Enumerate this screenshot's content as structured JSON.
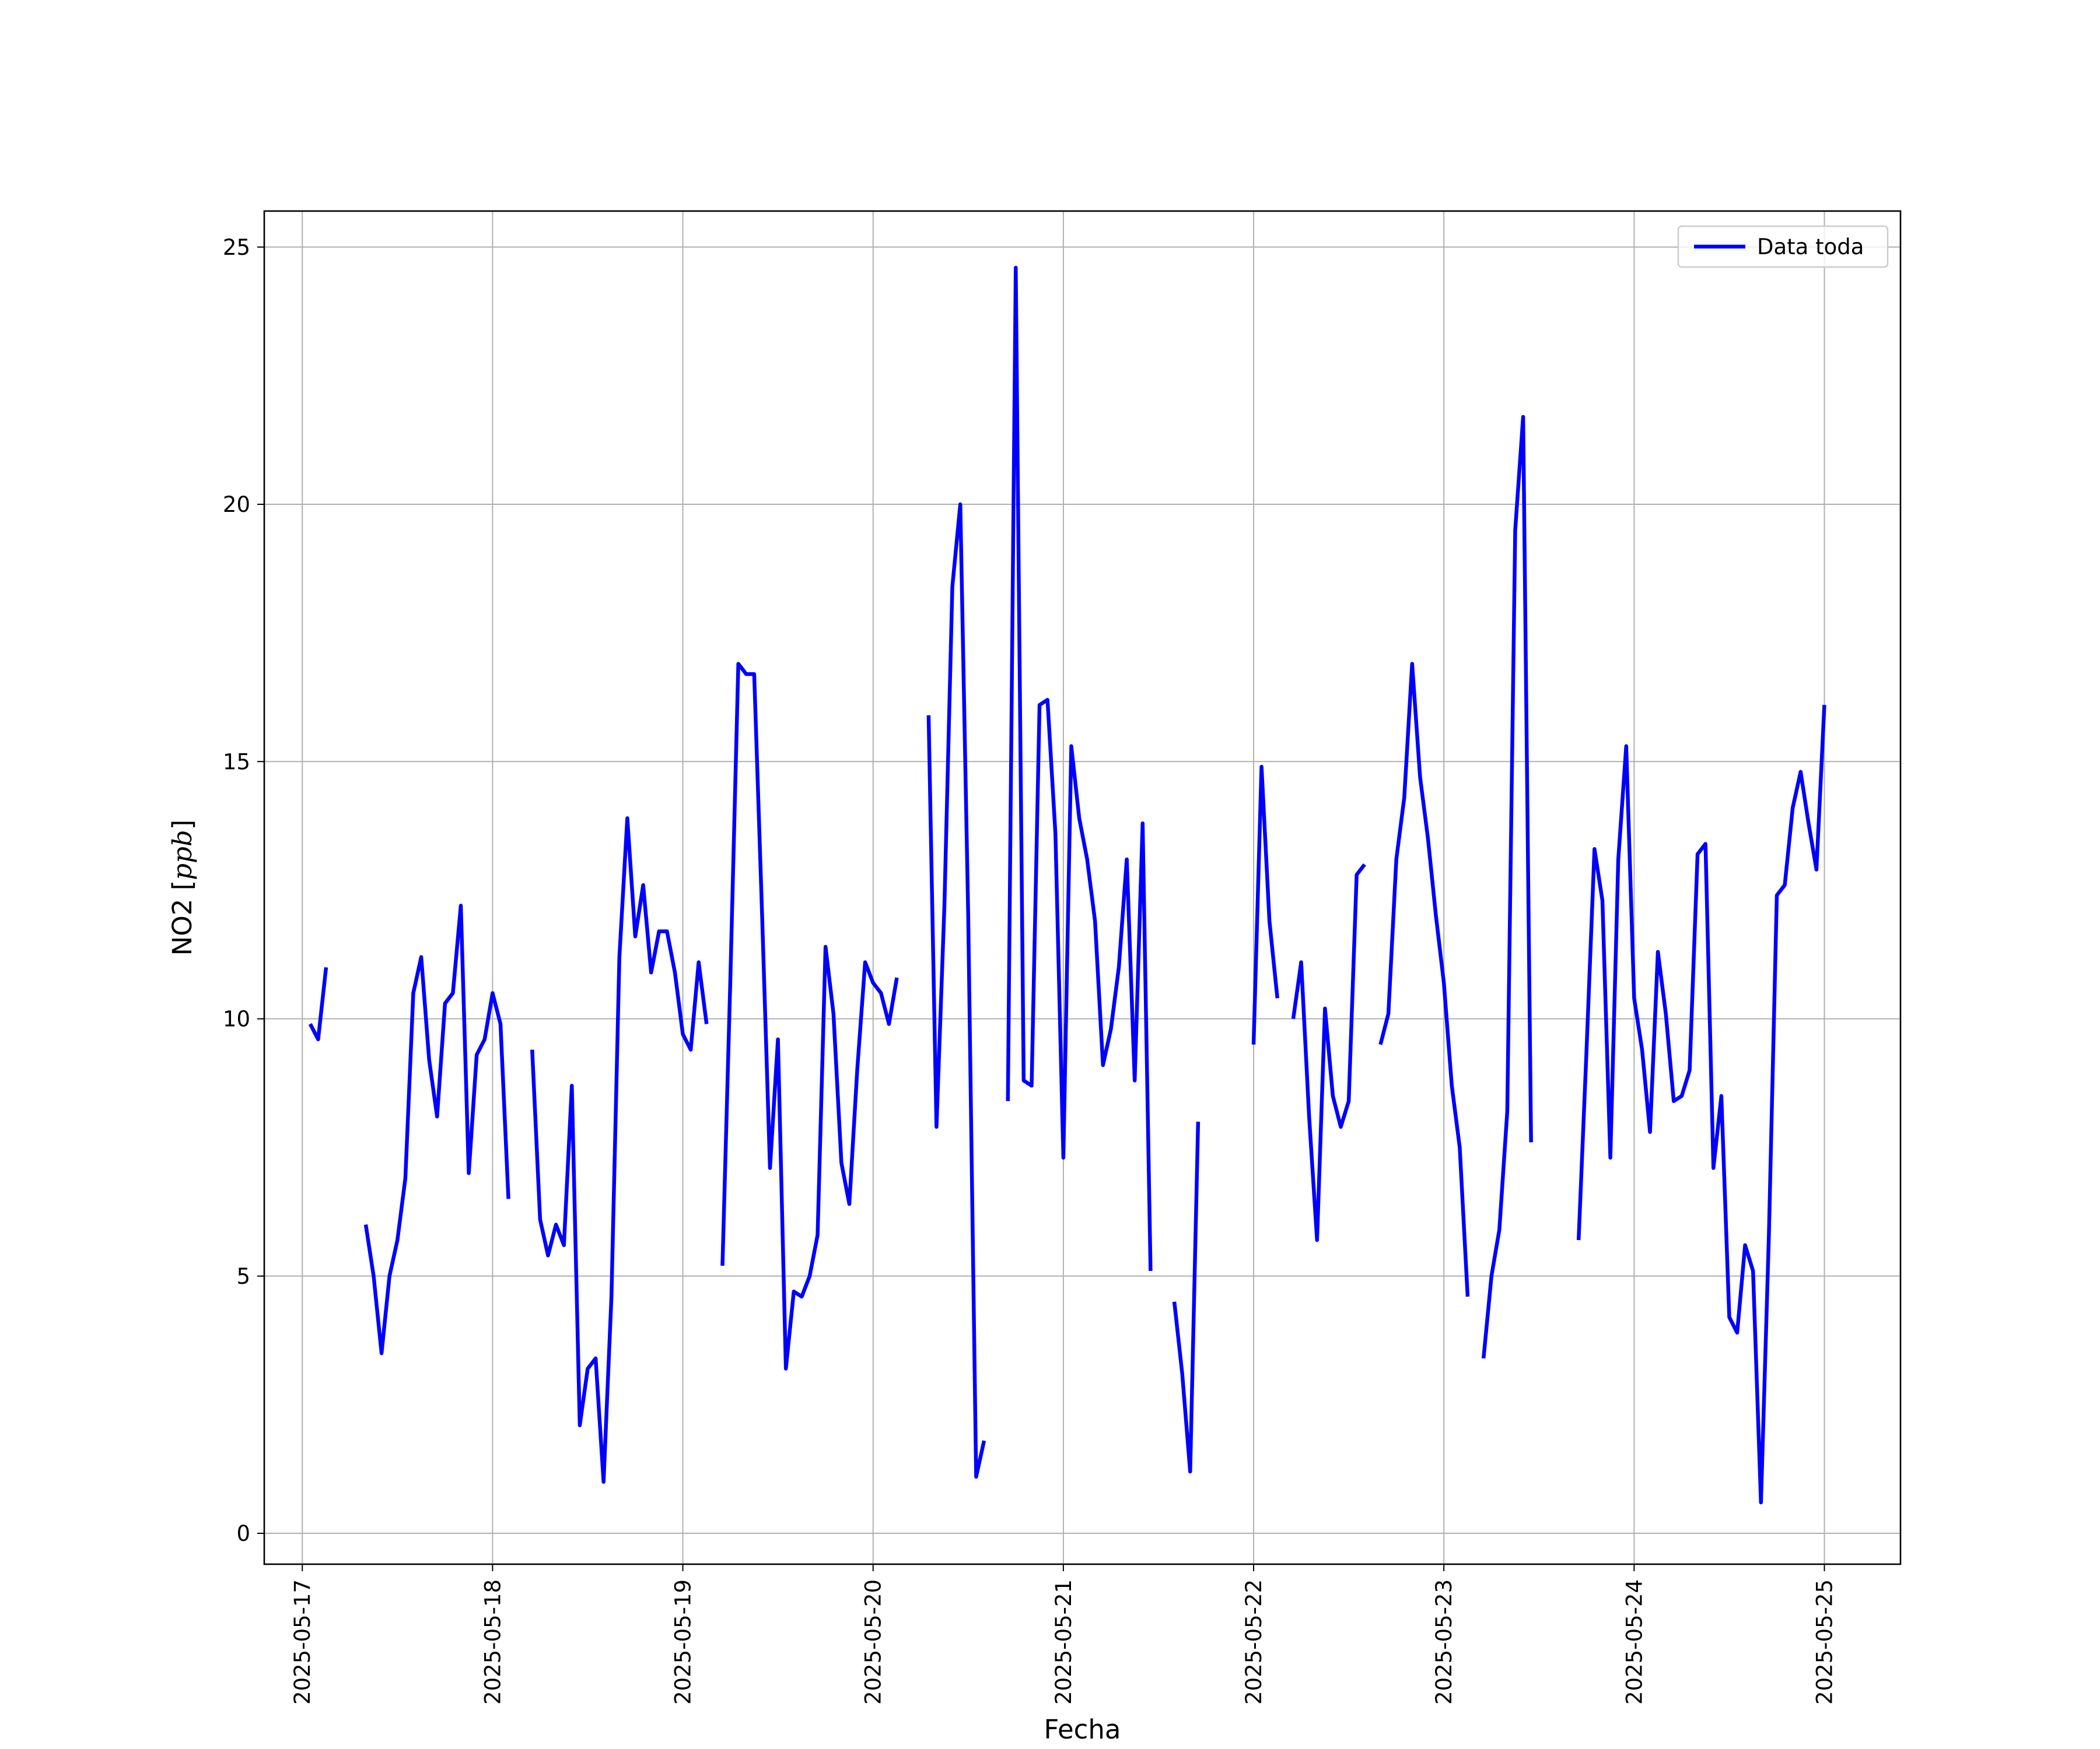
{
  "chart_data": {
    "type": "line",
    "title": "",
    "xlabel": "Fecha",
    "ylabel_prefix": "NO2 [",
    "ylabel_unit": "ppb",
    "ylabel_suffix": "]",
    "grid": true,
    "legend": {
      "placement": "top-right",
      "entries": [
        "Data toda"
      ]
    },
    "x_ticks": [
      "2025-05-17",
      "2025-05-18",
      "2025-05-19",
      "2025-05-20",
      "2025-05-21",
      "2025-05-22",
      "2025-05-23",
      "2025-05-24",
      "2025-05-25"
    ],
    "y_ticks": [
      0,
      5,
      10,
      15,
      20,
      25
    ],
    "xlim": [
      "2025-05-16T19:12",
      "2025-05-25T09:36"
    ],
    "ylim": [
      -0.6,
      25.7
    ],
    "series": [
      {
        "name": "Data toda",
        "color": "#0000ff",
        "segments": [
          [
            [
              "2025-05-17T01:00",
              9.9
            ],
            [
              "2025-05-17T02:00",
              9.6
            ],
            [
              "2025-05-17T03:00",
              11.0
            ]
          ],
          [
            [
              "2025-05-17T08:00",
              6.0
            ],
            [
              "2025-05-17T09:00",
              5.0
            ],
            [
              "2025-05-17T10:00",
              3.5
            ],
            [
              "2025-05-17T11:00",
              5.0
            ],
            [
              "2025-05-17T12:00",
              5.7
            ],
            [
              "2025-05-17T13:00",
              6.9
            ],
            [
              "2025-05-17T14:00",
              10.5
            ],
            [
              "2025-05-17T15:00",
              11.2
            ],
            [
              "2025-05-17T16:00",
              9.2
            ],
            [
              "2025-05-17T17:00",
              8.1
            ],
            [
              "2025-05-17T18:00",
              10.3
            ],
            [
              "2025-05-17T19:00",
              10.5
            ],
            [
              "2025-05-17T20:00",
              12.2
            ],
            [
              "2025-05-17T21:00",
              7.0
            ],
            [
              "2025-05-17T22:00",
              9.3
            ],
            [
              "2025-05-17T23:00",
              9.6
            ],
            [
              "2025-05-18T00:00",
              10.5
            ],
            [
              "2025-05-18T01:00",
              9.9
            ],
            [
              "2025-05-18T02:00",
              6.5
            ]
          ],
          [
            [
              "2025-05-18T05:00",
              9.4
            ],
            [
              "2025-05-18T06:00",
              6.1
            ],
            [
              "2025-05-18T07:00",
              5.4
            ],
            [
              "2025-05-18T08:00",
              6.0
            ],
            [
              "2025-05-18T09:00",
              5.6
            ],
            [
              "2025-05-18T10:00",
              8.7
            ],
            [
              "2025-05-18T11:00",
              2.1
            ],
            [
              "2025-05-18T12:00",
              3.2
            ],
            [
              "2025-05-18T13:00",
              3.4
            ],
            [
              "2025-05-18T14:00",
              1.0
            ],
            [
              "2025-05-18T15:00",
              4.6
            ],
            [
              "2025-05-18T16:00",
              11.2
            ],
            [
              "2025-05-18T17:00",
              13.9
            ],
            [
              "2025-05-18T18:00",
              11.6
            ],
            [
              "2025-05-18T19:00",
              12.6
            ],
            [
              "2025-05-18T20:00",
              10.9
            ],
            [
              "2025-05-18T21:00",
              11.7
            ],
            [
              "2025-05-18T22:00",
              11.7
            ],
            [
              "2025-05-18T23:00",
              10.9
            ],
            [
              "2025-05-19T00:00",
              9.7
            ],
            [
              "2025-05-19T01:00",
              9.4
            ],
            [
              "2025-05-19T02:00",
              11.1
            ],
            [
              "2025-05-19T03:00",
              9.9
            ]
          ],
          [
            [
              "2025-05-19T05:00",
              5.2
            ],
            [
              "2025-05-19T06:00",
              10.8
            ],
            [
              "2025-05-19T07:00",
              16.9
            ],
            [
              "2025-05-19T08:00",
              16.7
            ],
            [
              "2025-05-19T09:00",
              16.7
            ],
            [
              "2025-05-19T10:00",
              12.0
            ],
            [
              "2025-05-19T11:00",
              7.1
            ],
            [
              "2025-05-19T12:00",
              9.6
            ],
            [
              "2025-05-19T13:00",
              3.2
            ],
            [
              "2025-05-19T14:00",
              4.7
            ],
            [
              "2025-05-19T15:00",
              4.6
            ],
            [
              "2025-05-19T16:00",
              5.0
            ],
            [
              "2025-05-19T17:00",
              5.8
            ],
            [
              "2025-05-19T18:00",
              11.4
            ],
            [
              "2025-05-19T19:00",
              10.1
            ],
            [
              "2025-05-19T20:00",
              7.2
            ],
            [
              "2025-05-19T21:00",
              6.4
            ],
            [
              "2025-05-19T22:00",
              9.0
            ],
            [
              "2025-05-19T23:00",
              11.1
            ],
            [
              "2025-05-20T00:00",
              10.7
            ],
            [
              "2025-05-20T01:00",
              10.5
            ],
            [
              "2025-05-20T02:00",
              9.9
            ],
            [
              "2025-05-20T03:00",
              10.8
            ]
          ],
          [
            [
              "2025-05-20T07:00",
              15.9
            ],
            [
              "2025-05-20T08:00",
              7.9
            ],
            [
              "2025-05-20T09:00",
              12.2
            ],
            [
              "2025-05-20T10:00",
              18.4
            ],
            [
              "2025-05-20T11:00",
              20.0
            ],
            [
              "2025-05-20T12:00",
              12.0
            ],
            [
              "2025-05-20T13:00",
              1.1
            ],
            [
              "2025-05-20T14:00",
              1.8
            ]
          ],
          [
            [
              "2025-05-20T17:00",
              8.4
            ],
            [
              "2025-05-20T18:00",
              24.6
            ],
            [
              "2025-05-20T19:00",
              8.8
            ],
            [
              "2025-05-20T20:00",
              8.7
            ],
            [
              "2025-05-20T21:00",
              16.1
            ],
            [
              "2025-05-20T22:00",
              16.2
            ],
            [
              "2025-05-20T23:00",
              13.6
            ],
            [
              "2025-05-21T00:00",
              7.3
            ],
            [
              "2025-05-21T01:00",
              15.3
            ],
            [
              "2025-05-21T02:00",
              13.9
            ],
            [
              "2025-05-21T03:00",
              13.1
            ],
            [
              "2025-05-21T04:00",
              11.9
            ],
            [
              "2025-05-21T05:00",
              9.1
            ],
            [
              "2025-05-21T06:00",
              9.8
            ],
            [
              "2025-05-21T07:00",
              11.0
            ],
            [
              "2025-05-21T08:00",
              13.1
            ],
            [
              "2025-05-21T09:00",
              8.8
            ],
            [
              "2025-05-21T10:00",
              13.8
            ],
            [
              "2025-05-21T11:00",
              5.1
            ]
          ],
          [
            [
              "2025-05-21T14:00",
              4.5
            ],
            [
              "2025-05-21T15:00",
              3.1
            ],
            [
              "2025-05-21T16:00",
              1.2
            ],
            [
              "2025-05-21T17:00",
              8.0
            ]
          ],
          [
            [
              "2025-05-22T00:00",
              9.5
            ],
            [
              "2025-05-22T01:00",
              14.9
            ],
            [
              "2025-05-22T02:00",
              11.9
            ],
            [
              "2025-05-22T03:00",
              10.4
            ]
          ],
          [
            [
              "2025-05-22T05:00",
              10.0
            ],
            [
              "2025-05-22T06:00",
              11.1
            ],
            [
              "2025-05-22T07:00",
              8.1
            ],
            [
              "2025-05-22T08:00",
              5.7
            ],
            [
              "2025-05-22T09:00",
              10.2
            ],
            [
              "2025-05-22T10:00",
              8.5
            ],
            [
              "2025-05-22T11:00",
              7.9
            ],
            [
              "2025-05-22T12:00",
              8.4
            ],
            [
              "2025-05-22T13:00",
              12.8
            ],
            [
              "2025-05-22T14:00",
              13.0
            ]
          ],
          [
            [
              "2025-05-22T16:00",
              9.5
            ],
            [
              "2025-05-22T17:00",
              10.1
            ],
            [
              "2025-05-22T18:00",
              13.1
            ],
            [
              "2025-05-22T19:00",
              14.3
            ],
            [
              "2025-05-22T20:00",
              16.9
            ],
            [
              "2025-05-22T21:00",
              14.7
            ],
            [
              "2025-05-22T22:00",
              13.5
            ],
            [
              "2025-05-22T23:00",
              12.0
            ],
            [
              "2025-05-23T00:00",
              10.7
            ],
            [
              "2025-05-23T01:00",
              8.7
            ],
            [
              "2025-05-23T02:00",
              7.5
            ],
            [
              "2025-05-23T03:00",
              4.6
            ]
          ],
          [
            [
              "2025-05-23T05:00",
              3.4
            ],
            [
              "2025-05-23T06:00",
              5.0
            ],
            [
              "2025-05-23T07:00",
              5.9
            ],
            [
              "2025-05-23T08:00",
              8.2
            ],
            [
              "2025-05-23T09:00",
              19.5
            ],
            [
              "2025-05-23T10:00",
              21.7
            ],
            [
              "2025-05-23T11:00",
              7.6
            ]
          ],
          [
            [
              "2025-05-23T17:00",
              5.7
            ],
            [
              "2025-05-23T18:00",
              9.4
            ],
            [
              "2025-05-23T19:00",
              13.3
            ],
            [
              "2025-05-23T20:00",
              12.3
            ],
            [
              "2025-05-23T21:00",
              7.3
            ],
            [
              "2025-05-23T22:00",
              13.1
            ],
            [
              "2025-05-23T23:00",
              15.3
            ],
            [
              "2025-05-24T00:00",
              10.4
            ],
            [
              "2025-05-24T01:00",
              9.4
            ],
            [
              "2025-05-24T02:00",
              7.8
            ],
            [
              "2025-05-24T03:00",
              11.3
            ],
            [
              "2025-05-24T04:00",
              10.1
            ],
            [
              "2025-05-24T05:00",
              8.4
            ],
            [
              "2025-05-24T06:00",
              8.5
            ],
            [
              "2025-05-24T07:00",
              9.0
            ],
            [
              "2025-05-24T08:00",
              13.2
            ],
            [
              "2025-05-24T09:00",
              13.4
            ],
            [
              "2025-05-24T10:00",
              7.1
            ],
            [
              "2025-05-24T11:00",
              8.5
            ],
            [
              "2025-05-24T12:00",
              4.2
            ],
            [
              "2025-05-24T13:00",
              3.9
            ],
            [
              "2025-05-24T14:00",
              5.6
            ],
            [
              "2025-05-24T15:00",
              5.1
            ],
            [
              "2025-05-24T16:00",
              0.6
            ],
            [
              "2025-05-24T17:00",
              5.8
            ],
            [
              "2025-05-24T18:00",
              12.4
            ],
            [
              "2025-05-24T19:00",
              12.6
            ],
            [
              "2025-05-24T20:00",
              14.1
            ],
            [
              "2025-05-24T21:00",
              14.8
            ],
            [
              "2025-05-24T22:00",
              13.8
            ],
            [
              "2025-05-24T23:00",
              12.9
            ],
            [
              "2025-05-25T00:00",
              16.1
            ]
          ]
        ]
      }
    ]
  }
}
